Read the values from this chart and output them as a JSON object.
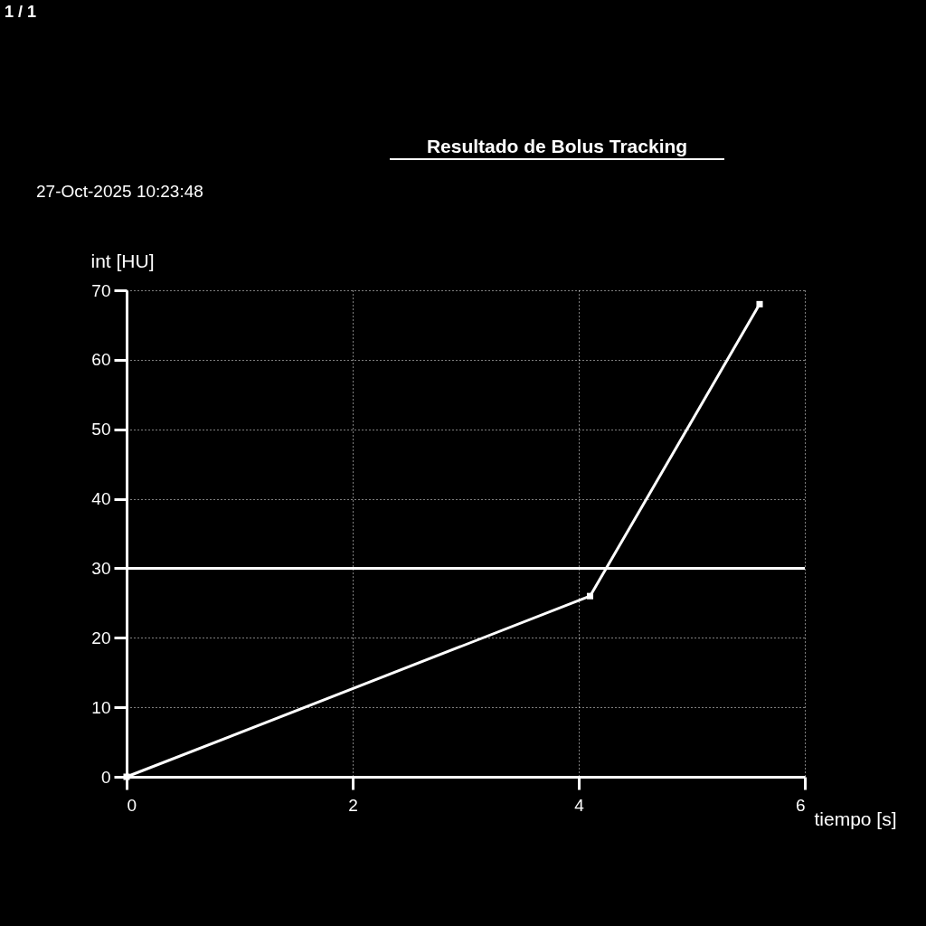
{
  "chart_data": {
    "type": "line",
    "title": "Resultado de Bolus Tracking",
    "subtitle": "27-Oct-2025 10:23:48",
    "xlabel": "tiempo [s]",
    "ylabel": "int [HU]",
    "annotations": [
      "1 / 1"
    ],
    "x": [
      0,
      4.1,
      5.6
    ],
    "series": [
      {
        "color": "#ffffff",
        "values": [
          0,
          26,
          68
        ]
      }
    ],
    "xlim": [
      0,
      6
    ],
    "xticks": [
      0,
      2,
      4,
      6
    ],
    "ylim": [
      0,
      70
    ],
    "yticks": [
      0,
      10,
      20,
      30,
      40,
      50,
      60,
      70
    ],
    "ref_lines": [
      {
        "axis": "y",
        "value": 30,
        "color": "#ffffff",
        "line_style": "solid"
      }
    ],
    "grid": true,
    "marker": "square",
    "line_style": "solid"
  }
}
